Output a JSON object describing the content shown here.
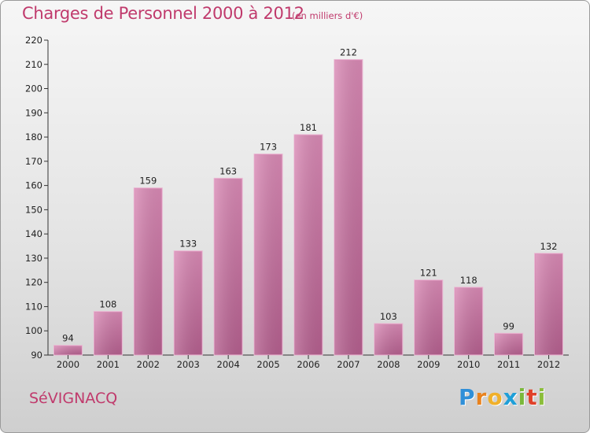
{
  "title": "Charges de Personnel 2000 à 2012",
  "subtitle": "(en milliers d'€)",
  "commune": "SéVIGNACQ",
  "logo": {
    "letters": [
      "P",
      "r",
      "o",
      "x",
      "i",
      "t",
      "i"
    ],
    "colors": [
      "#2f8fd8",
      "#e8821e",
      "#f0b02a",
      "#1f9fd8",
      "#7ab83a",
      "#e0412a",
      "#8bbd3a"
    ]
  },
  "colors": {
    "bar": "#d98ab5",
    "bar_dark": "#b5608f",
    "accent": "#c03a6c"
  },
  "chart_data": {
    "type": "bar",
    "categories": [
      "2000",
      "2001",
      "2002",
      "2003",
      "2004",
      "2005",
      "2006",
      "2007",
      "2008",
      "2009",
      "2010",
      "2011",
      "2012"
    ],
    "values": [
      94,
      108,
      159,
      133,
      163,
      173,
      181,
      212,
      103,
      121,
      118,
      99,
      132
    ],
    "ylim": [
      90,
      220
    ],
    "yticks": [
      90,
      100,
      110,
      120,
      130,
      140,
      150,
      160,
      170,
      180,
      190,
      200,
      210,
      220
    ],
    "grid": false,
    "legend": "none"
  }
}
